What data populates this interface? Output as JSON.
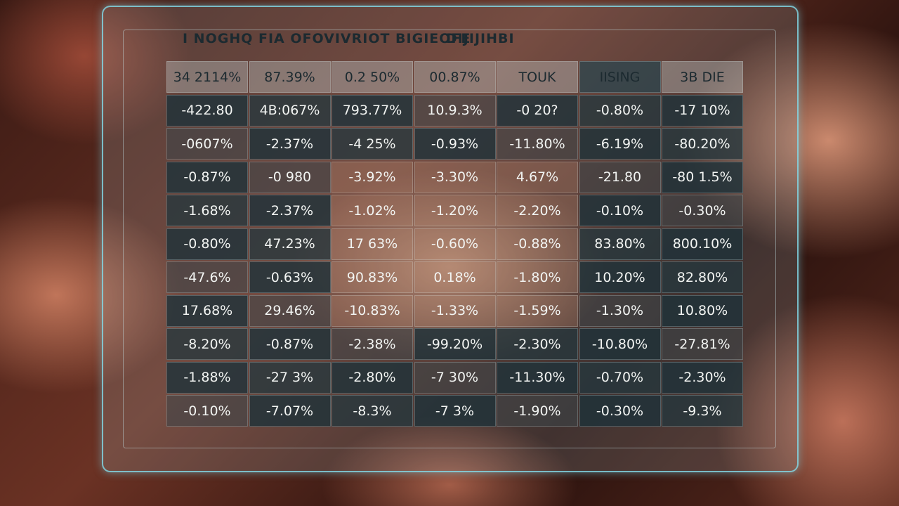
{
  "header": {
    "title": "I NOGHQ FIA OFOVIVRIOT BIGIEOFE",
    "subtitle": "DIJIJIHBI"
  },
  "table": {
    "rows": [
      [
        "34 2114%",
        "87.39%",
        "0.2 50%",
        "00.87%",
        "TOUK",
        "IISING",
        "3B DIE"
      ],
      [
        "-422.80",
        "4B:067%",
        "793.77%",
        "10.9.3%",
        "-0 20?",
        "-0.80%",
        "-17 10%"
      ],
      [
        "-0607%",
        "-2.37%",
        "-4 25%",
        "-0.93%",
        "-11.80%",
        "-6.19%",
        "-80.20%"
      ],
      [
        "-0.87%",
        "-0 980",
        "-3.92%",
        "-3.30%",
        "4.67%",
        "-21.80",
        "-80 1.5%"
      ],
      [
        "-1.68%",
        "-2.37%",
        "-1.02%",
        "-1.20%",
        "-2.20%",
        "-0.10%",
        "-0.30%"
      ],
      [
        "-0.80%",
        "47.23%",
        "17 63%",
        "-0.60%",
        "-0.88%",
        "83.80%",
        "800.10%"
      ],
      [
        "-47.6%",
        "-0.63%",
        "90.83%",
        "0.18%",
        "-1.80%",
        "10.20%",
        "82.80%"
      ],
      [
        "17.68%",
        "29.46%",
        "-10.83%",
        "-1.33%",
        "-1.59%",
        "-1.30%",
        "10.80%"
      ],
      [
        "-8.20%",
        "-0.87%",
        "-2.38%",
        "-99.20%",
        "-2.30%",
        "-10.80%",
        "-27.81%"
      ],
      [
        "-1.88%",
        "-27 3%",
        "-2.80%",
        "-7 30%",
        "-11.30%",
        "-0.70%",
        "-2.30%"
      ],
      [
        "-0.10%",
        "-7.07%",
        "-8.3%",
        "-7 3%",
        "-1.90%",
        "-0.30%",
        "-9.3%"
      ]
    ]
  }
}
